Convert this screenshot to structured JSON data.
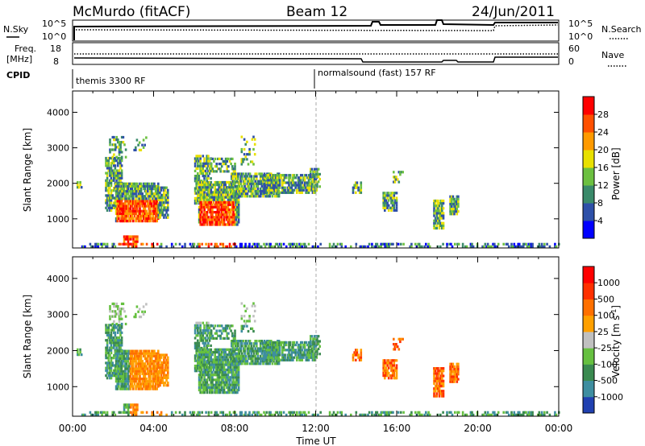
{
  "header": {
    "station": "McMurdo (fitACF)",
    "beam": "Beam 12",
    "date": "24/Jun/2011"
  },
  "noise_panel": {
    "left_label": "N.Sky",
    "right_label": "N.Search",
    "left_ticks": [
      "10^5",
      "10^0"
    ],
    "right_ticks": [
      "10^5",
      "10^0"
    ]
  },
  "freq_panel": {
    "left_label_1": "Freq.",
    "left_label_2": "[MHz]",
    "right_label": "Nave",
    "left_ticks": [
      "18",
      "8"
    ],
    "right_ticks": [
      "60",
      "0"
    ]
  },
  "cpid_panel": {
    "label": "CPID",
    "modes": [
      "themis 3300 RF",
      "normalsound (fast) 157 RF"
    ]
  },
  "colors": {
    "power": [
      "#0000ff",
      "#2e50a8",
      "#3a8a6a",
      "#6cc040",
      "#e8e000",
      "#ff9a00",
      "#ff5000",
      "#ff0000"
    ],
    "velocity": [
      "#2040b0",
      "#3e8ea0",
      "#3a8a50",
      "#66c040",
      "#c0c0c0",
      "#ffa000",
      "#ff7000",
      "#ff3000",
      "#ff0000"
    ]
  },
  "chart_data": [
    {
      "type": "heatmap",
      "ylabel": "Slant Range [km]",
      "y_ticks": [
        "4000",
        "3000",
        "2000",
        "1000"
      ],
      "ylim": [
        180,
        4600
      ],
      "xlim": [
        0,
        24
      ],
      "colorbar_label": "Power [dB]",
      "colorbar_ticks": [
        "28",
        "24",
        "20",
        "16",
        "12",
        "8",
        "4"
      ]
    },
    {
      "type": "heatmap",
      "ylabel": "Slant Range [km]",
      "y_ticks": [
        "4000",
        "3000",
        "2000",
        "1000"
      ],
      "ylim": [
        180,
        4600
      ],
      "xlim": [
        0,
        24
      ],
      "colorbar_label": "Velocity [m s",
      "colorbar_label_sup": "-1",
      "colorbar_label_end": "]",
      "colorbar_ticks": [
        "1000",
        "500",
        "100",
        "25",
        "-25",
        "-100",
        "-500",
        "-1000"
      ]
    }
  ],
  "x_axis": {
    "ticks": [
      "00:00",
      "04:00",
      "08:00",
      "12:00",
      "16:00",
      "20:00",
      "00:00"
    ],
    "label": "Time UT"
  }
}
